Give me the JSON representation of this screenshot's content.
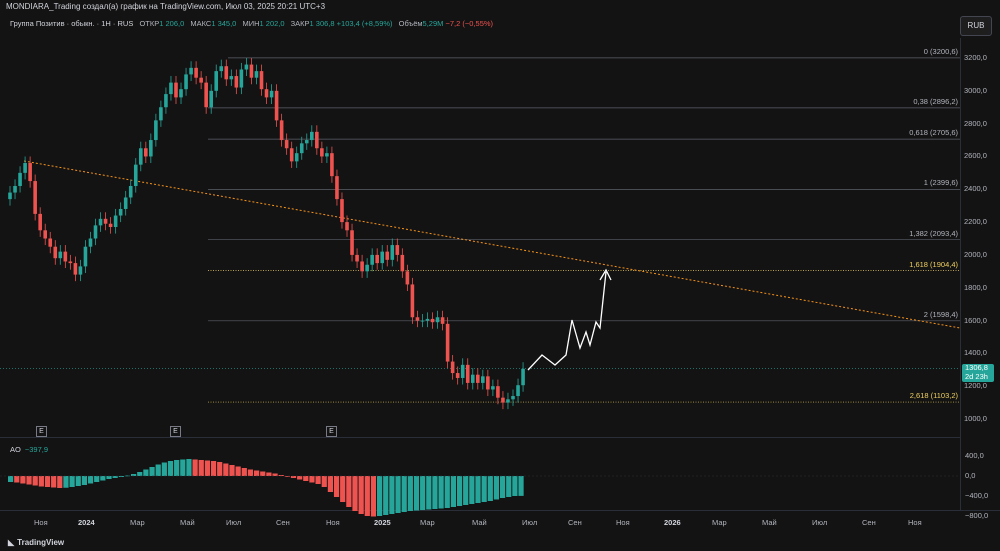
{
  "header": {
    "publish_line": "MONDIARA_Trading создал(а) график на TradingView.com, Июл 03, 2025 20:21 UTC+3"
  },
  "symbol": {
    "name": "Группа Позитив · обыкн. · 1Н · RUS",
    "open_label": "ОТКР",
    "open": "1 206,0",
    "high_label": "МАКС",
    "high": "1 345,0",
    "low_label": "МИН",
    "low": "1 202,0",
    "close_label": "ЗАКР",
    "close": "1 306,8",
    "change": "+103,4 (+8,59%)",
    "volume_label": "Объём",
    "volume": "5,29M",
    "volume_change": "−7,2 (−0,55%)"
  },
  "currency_button": "RUB",
  "colors": {
    "up": "#26a69a",
    "down": "#ef5350",
    "trendline": "#f7931a",
    "fib_gold": "#f0d060",
    "projection": "#ffffff",
    "background": "#131313"
  },
  "price_axis": {
    "ticks": [
      "3200,0",
      "3000,0",
      "2800,0",
      "2600,0",
      "2400,0",
      "2200,0",
      "2000,0",
      "1800,0",
      "1600,0",
      "1400,0",
      "1200,0",
      "1000,0"
    ]
  },
  "last_price": {
    "value": "1306,8",
    "countdown": "2d 23h"
  },
  "fib_levels": [
    {
      "label": "0 (3200,6)",
      "price": 3200.6,
      "gold": false
    },
    {
      "label": "0,38 (2896,2)",
      "price": 2896.2,
      "gold": false
    },
    {
      "label": "0,618 (2705,6)",
      "price": 2705.6,
      "gold": false
    },
    {
      "label": "1 (2399,6)",
      "price": 2399.6,
      "gold": false
    },
    {
      "label": "1,382 (2093,4)",
      "price": 2093.4,
      "gold": false
    },
    {
      "label": "1,618 (1904,4)",
      "price": 1904.4,
      "gold": true
    },
    {
      "label": "2 (1598,4)",
      "price": 1598.4,
      "gold": false
    },
    {
      "label": "2,618 (1103,2)",
      "price": 1103.2,
      "gold": true
    }
  ],
  "event_markers": [
    "E",
    "E",
    "E"
  ],
  "indicator": {
    "name": "AO",
    "value": "−397,9",
    "ticks": [
      "400,0",
      "0,0",
      "−400,0",
      "−800,0"
    ]
  },
  "time_axis": [
    {
      "label": "Ноя",
      "bold": false
    },
    {
      "label": "2024",
      "bold": true
    },
    {
      "label": "Мар",
      "bold": false
    },
    {
      "label": "Май",
      "bold": false
    },
    {
      "label": "Июл",
      "bold": false
    },
    {
      "label": "Сен",
      "bold": false
    },
    {
      "label": "Ноя",
      "bold": false
    },
    {
      "label": "2025",
      "bold": true
    },
    {
      "label": "Мар",
      "bold": false
    },
    {
      "label": "Май",
      "bold": false
    },
    {
      "label": "Июл",
      "bold": false
    },
    {
      "label": "Сен",
      "bold": false
    },
    {
      "label": "Ноя",
      "bold": false
    },
    {
      "label": "2026",
      "bold": true
    },
    {
      "label": "Мар",
      "bold": false
    },
    {
      "label": "Май",
      "bold": false
    },
    {
      "label": "Июл",
      "bold": false
    },
    {
      "label": "Сен",
      "bold": false
    },
    {
      "label": "Ноя",
      "bold": false
    }
  ],
  "brand": {
    "logo_icon": "tradingview-logo-icon",
    "name": "TradingView"
  }
}
